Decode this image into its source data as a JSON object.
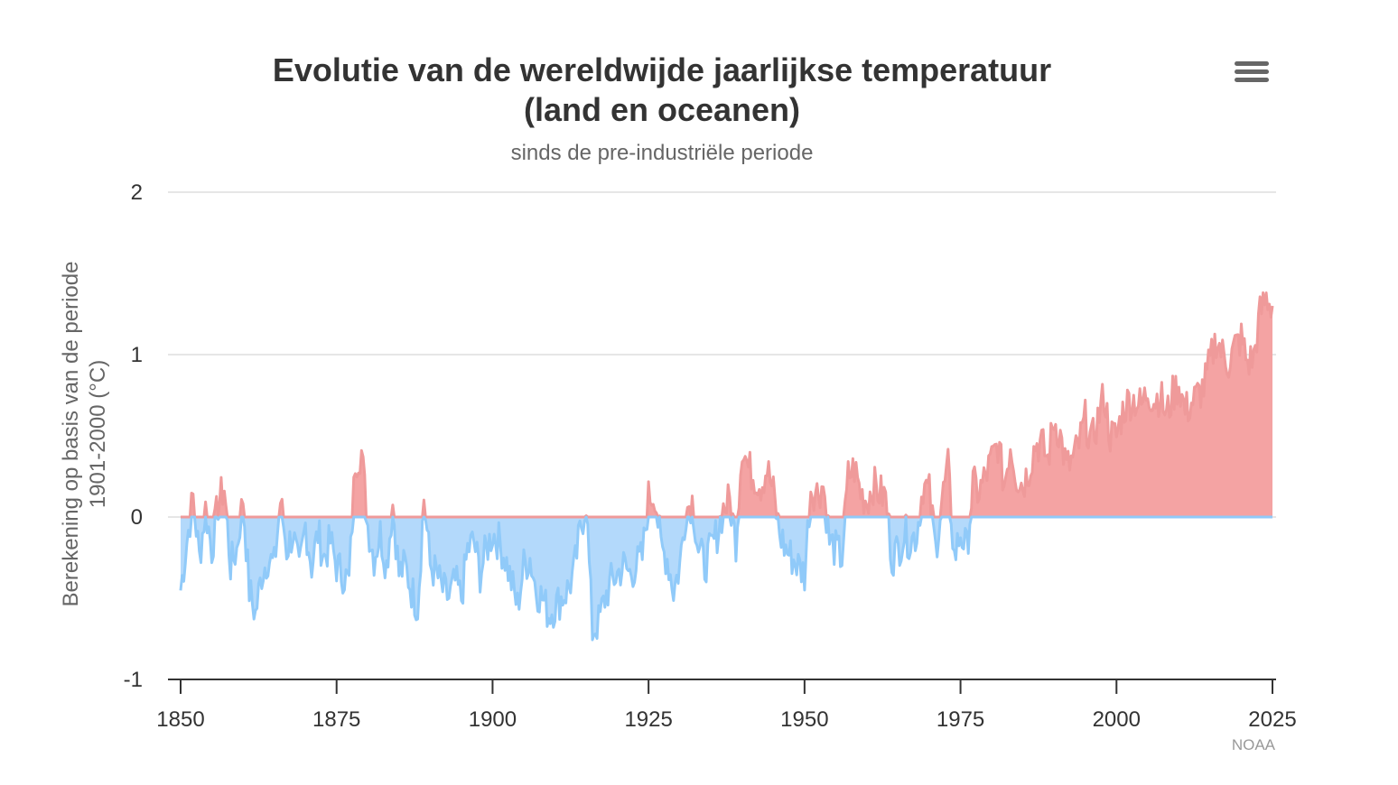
{
  "chart_data": {
    "type": "area",
    "title_line1": "Evolutie van de wereldwijde jaarlijkse temperatuur",
    "title_line2": "(land en oceanen)",
    "subtitle": "sinds de pre-industriële periode",
    "ylabel_line1": "Berekening op basis van de periode",
    "ylabel_line2": "1901-2000 (°C)",
    "credits": "NOAA",
    "xlim": [
      1850,
      2025
    ],
    "ylim": [
      -1,
      2
    ],
    "x_ticks": [
      "1850",
      "1875",
      "1900",
      "1925",
      "1950",
      "1975",
      "2000",
      "2025"
    ],
    "y_ticks": [
      "2",
      "1",
      "0",
      "-1"
    ],
    "positive_color": "#f4a3a3",
    "positive_line_color": "#ef9a9a",
    "negative_color": "#b3d9fb",
    "negative_line_color": "#90caf9",
    "series": [
      {
        "values_monthly_approx_annual": [
          [
            1850,
            -0.45
          ],
          [
            1851,
            -0.15
          ],
          [
            1852,
            0.12
          ],
          [
            1853,
            -0.25
          ],
          [
            1854,
            0.05
          ],
          [
            1855,
            -0.2
          ],
          [
            1856,
            0.08
          ],
          [
            1857,
            0.18
          ],
          [
            1858,
            -0.3
          ],
          [
            1859,
            -0.2
          ],
          [
            1860,
            0.12
          ],
          [
            1861,
            -0.45
          ],
          [
            1862,
            -0.6
          ],
          [
            1863,
            -0.35
          ],
          [
            1864,
            -0.25
          ],
          [
            1865,
            -0.3
          ],
          [
            1866,
            0.1
          ],
          [
            1867,
            -0.2
          ],
          [
            1868,
            -0.1
          ],
          [
            1869,
            -0.35
          ],
          [
            1870,
            -0.05
          ],
          [
            1871,
            -0.3
          ],
          [
            1872,
            -0.1
          ],
          [
            1873,
            -0.25
          ],
          [
            1874,
            -0.15
          ],
          [
            1875,
            -0.3
          ],
          [
            1876,
            -0.35
          ],
          [
            1877,
            -0.4
          ],
          [
            1878,
            0.35
          ],
          [
            1879,
            0.4
          ],
          [
            1880,
            -0.05
          ],
          [
            1881,
            -0.25
          ],
          [
            1882,
            -0.1
          ],
          [
            1883,
            -0.3
          ],
          [
            1884,
            0.08
          ],
          [
            1885,
            -0.35
          ],
          [
            1886,
            -0.3
          ],
          [
            1887,
            -0.45
          ],
          [
            1888,
            -0.55
          ],
          [
            1889,
            0.12
          ],
          [
            1890,
            -0.3
          ],
          [
            1891,
            -0.35
          ],
          [
            1892,
            -0.45
          ],
          [
            1893,
            -0.5
          ],
          [
            1894,
            -0.4
          ],
          [
            1895,
            -0.5
          ],
          [
            1896,
            -0.2
          ],
          [
            1897,
            -0.15
          ],
          [
            1898,
            -0.35
          ],
          [
            1899,
            -0.2
          ],
          [
            1900,
            -0.1
          ],
          [
            1901,
            -0.15
          ],
          [
            1902,
            -0.25
          ],
          [
            1903,
            -0.4
          ],
          [
            1904,
            -0.55
          ],
          [
            1905,
            -0.3
          ],
          [
            1906,
            -0.25
          ],
          [
            1907,
            -0.45
          ],
          [
            1908,
            -0.5
          ],
          [
            1909,
            -0.6
          ],
          [
            1910,
            -0.55
          ],
          [
            1911,
            -0.5
          ],
          [
            1912,
            -0.45
          ],
          [
            1913,
            -0.35
          ],
          [
            1914,
            -0.1
          ],
          [
            1915,
            0.1
          ],
          [
            1916,
            -0.7
          ],
          [
            1917,
            -0.65
          ],
          [
            1918,
            -0.5
          ],
          [
            1919,
            -0.4
          ],
          [
            1920,
            -0.35
          ],
          [
            1921,
            -0.3
          ],
          [
            1922,
            -0.35
          ],
          [
            1923,
            -0.3
          ],
          [
            1924,
            -0.25
          ],
          [
            1925,
            0.12
          ],
          [
            1926,
            0.15
          ],
          [
            1927,
            -0.2
          ],
          [
            1928,
            -0.25
          ],
          [
            1929,
            -0.45
          ],
          [
            1930,
            -0.3
          ],
          [
            1931,
            0.05
          ],
          [
            1932,
            0.1
          ],
          [
            1933,
            -0.2
          ],
          [
            1934,
            -0.3
          ],
          [
            1935,
            -0.2
          ],
          [
            1936,
            -0.1
          ],
          [
            1937,
            0.05
          ],
          [
            1938,
            0.1
          ],
          [
            1939,
            -0.15
          ],
          [
            1940,
            0.45
          ],
          [
            1941,
            0.3
          ],
          [
            1942,
            0.25
          ],
          [
            1943,
            0.2
          ],
          [
            1944,
            0.3
          ],
          [
            1945,
            0.15
          ],
          [
            1946,
            -0.1
          ],
          [
            1947,
            -0.2
          ],
          [
            1948,
            -0.25
          ],
          [
            1949,
            -0.3
          ],
          [
            1950,
            -0.35
          ],
          [
            1951,
            0.18
          ],
          [
            1952,
            0.15
          ],
          [
            1953,
            0.2
          ],
          [
            1954,
            -0.15
          ],
          [
            1955,
            -0.2
          ],
          [
            1956,
            -0.25
          ],
          [
            1957,
            0.25
          ],
          [
            1958,
            0.3
          ],
          [
            1959,
            0.15
          ],
          [
            1960,
            0.1
          ],
          [
            1961,
            0.2
          ],
          [
            1962,
            0.15
          ],
          [
            1963,
            0.12
          ],
          [
            1964,
            -0.25
          ],
          [
            1965,
            -0.2
          ],
          [
            1966,
            -0.1
          ],
          [
            1967,
            -0.15
          ],
          [
            1968,
            -0.1
          ],
          [
            1969,
            0.2
          ],
          [
            1970,
            0.15
          ],
          [
            1971,
            -0.2
          ],
          [
            1972,
            0.1
          ],
          [
            1973,
            0.3
          ],
          [
            1974,
            -0.25
          ],
          [
            1975,
            -0.1
          ],
          [
            1976,
            -0.2
          ],
          [
            1977,
            0.2
          ],
          [
            1978,
            0.15
          ],
          [
            1979,
            0.25
          ],
          [
            1980,
            0.35
          ],
          [
            1981,
            0.45
          ],
          [
            1982,
            0.2
          ],
          [
            1983,
            0.45
          ],
          [
            1984,
            0.25
          ],
          [
            1985,
            0.2
          ],
          [
            1986,
            0.3
          ],
          [
            1987,
            0.45
          ],
          [
            1988,
            0.45
          ],
          [
            1989,
            0.35
          ],
          [
            1990,
            0.6
          ],
          [
            1991,
            0.5
          ],
          [
            1992,
            0.3
          ],
          [
            1993,
            0.35
          ],
          [
            1994,
            0.45
          ],
          [
            1995,
            0.6
          ],
          [
            1996,
            0.45
          ],
          [
            1997,
            0.6
          ],
          [
            1998,
            0.75
          ],
          [
            1999,
            0.5
          ],
          [
            2000,
            0.5
          ],
          [
            2001,
            0.65
          ],
          [
            2002,
            0.72
          ],
          [
            2003,
            0.72
          ],
          [
            2004,
            0.68
          ],
          [
            2005,
            0.78
          ],
          [
            2006,
            0.72
          ],
          [
            2007,
            0.75
          ],
          [
            2008,
            0.62
          ],
          [
            2009,
            0.75
          ],
          [
            2010,
            0.82
          ],
          [
            2011,
            0.65
          ],
          [
            2012,
            0.7
          ],
          [
            2013,
            0.75
          ],
          [
            2014,
            0.8
          ],
          [
            2015,
            0.95
          ],
          [
            2016,
            1.1
          ],
          [
            2017,
            1.0
          ],
          [
            2018,
            0.95
          ],
          [
            2019,
            1.05
          ],
          [
            2020,
            1.1
          ],
          [
            2021,
            0.95
          ],
          [
            2022,
            0.98
          ],
          [
            2023,
            1.25
          ],
          [
            2024,
            1.35
          ],
          [
            2025,
            1.3
          ]
        ]
      }
    ]
  }
}
